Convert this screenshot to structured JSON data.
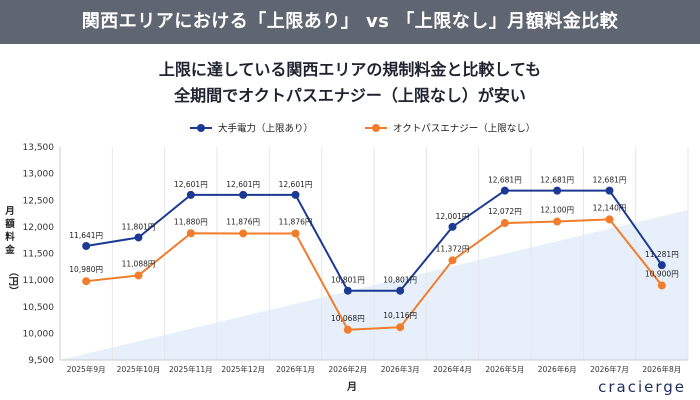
{
  "header": {
    "title": "関西エリアにおける「上限あり」 vs 「上限なし」月額料金比較"
  },
  "subtitle": {
    "line1": "上限に達している関西エリアの規制料金と比較しても",
    "line2": "全期間でオクトパスエナジー（上限なし）が安い"
  },
  "brand": {
    "name": "cracierge"
  },
  "colors": {
    "series1": "#1c3a94",
    "series2": "#f07c2c",
    "header_bg": "#5f6672",
    "background_area": "#e7f0fa"
  },
  "chart_data": {
    "type": "line",
    "title": "",
    "xlabel": "月",
    "ylabel": "月額料金（円）",
    "ylabel_chars": [
      "月",
      "額",
      "料",
      "金",
      "（円）"
    ],
    "ylim": [
      9500,
      13500
    ],
    "yticks": [
      "9,500",
      "10,000",
      "10,500",
      "11,000",
      "11,500",
      "12,000",
      "12,500",
      "13,000",
      "13,500"
    ],
    "ytick_values": [
      9500,
      10000,
      10500,
      11000,
      11500,
      12000,
      12500,
      13000,
      13500
    ],
    "grid": "vertical",
    "legend": "top",
    "categories": [
      "2025年9月",
      "2025年10月",
      "2025年11月",
      "2025年12月",
      "2026年1月",
      "2026年2月",
      "2026年3月",
      "2026年4月",
      "2026年5月",
      "2026年6月",
      "2026年7月",
      "2026年8月"
    ],
    "series": [
      {
        "name": "大手電力（上限あり）",
        "color": "#1c3a94",
        "values": [
          11641,
          11801,
          12601,
          12601,
          12601,
          10801,
          10801,
          12001,
          12681,
          12681,
          12681,
          11281
        ],
        "labels": [
          "11,641円",
          "11,801円",
          "12,601円",
          "12,601円",
          "12,601円",
          "10,801円",
          "10,801円",
          "12,001円",
          "12,681円",
          "12,681円",
          "12,681円",
          "11,281円"
        ]
      },
      {
        "name": "オクトパスエナジー（上限なし）",
        "color": "#f07c2c",
        "values": [
          10980,
          11088,
          11880,
          11876,
          11876,
          10068,
          10116,
          11372,
          12072,
          12100,
          12140,
          10900
        ],
        "labels": [
          "10,980円",
          "11,088円",
          "11,880円",
          "11,876円",
          "11,876円",
          "10,068円",
          "10,116円",
          "11,372円",
          "12,072円",
          "12,100円",
          "12,140円",
          "10,900円"
        ]
      }
    ]
  }
}
